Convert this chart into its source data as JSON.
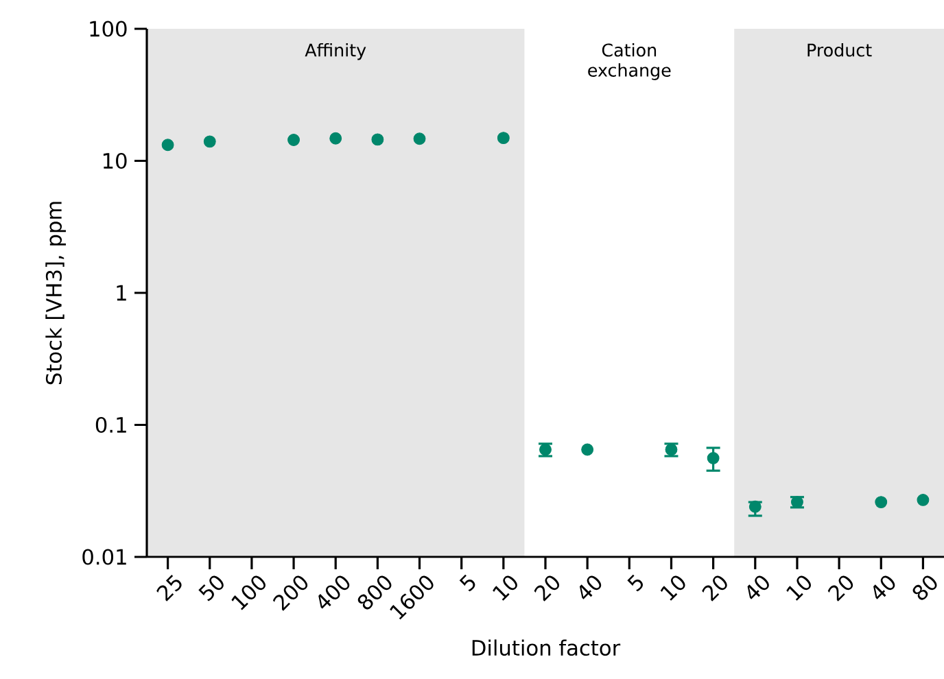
{
  "chart_data": {
    "type": "scatter",
    "xlabel": "Dilution factor",
    "ylabel": "Stock [VH3], ppm",
    "log": "y",
    "categories": [
      "25",
      "50",
      "100",
      "200",
      "400",
      "800",
      "1600",
      "5",
      "10",
      "20",
      "40",
      "5",
      "10",
      "20",
      "40",
      "10",
      "20",
      "40",
      "80"
    ],
    "ylim": [
      0.01,
      100
    ],
    "yticks": [
      0.01,
      0.1,
      1,
      10,
      100
    ],
    "annotations": [
      "Affinity",
      "Cation exchange",
      "Product"
    ],
    "series": [
      {
        "color": "#00876b",
        "values": [
          13.2,
          14.0,
          null,
          14.4,
          14.8,
          14.5,
          14.7,
          null,
          14.9,
          0.065,
          0.065,
          null,
          0.065,
          0.056,
          0.024,
          0.026,
          null,
          0.026,
          0.027
        ],
        "errors": [
          null,
          null,
          null,
          null,
          null,
          null,
          null,
          null,
          null,
          [
            0.058,
            0.072
          ],
          null,
          null,
          [
            0.058,
            0.072
          ],
          [
            0.045,
            0.067
          ],
          [
            0.0205,
            0.026
          ],
          [
            0.0237,
            0.0284
          ],
          null,
          null,
          null
        ]
      }
    ]
  }
}
